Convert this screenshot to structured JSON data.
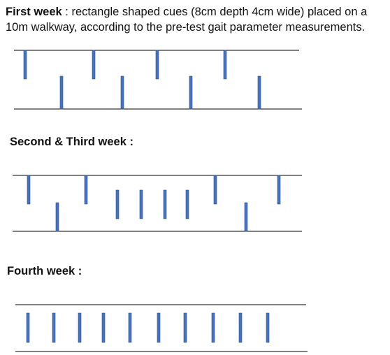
{
  "sections": [
    {
      "title": "First week",
      "description": " : rectangle shaped cues (8cm depth 4cm wide) placed on a 10m walkway, according to the pre-test gait parameter measurements.",
      "cue_pattern": [
        "top",
        "bottom",
        "top",
        "bottom",
        "top",
        "bottom",
        "top",
        "bottom"
      ]
    },
    {
      "title": "Second & Third week :",
      "cue_pattern": [
        "top",
        "bottom",
        "top",
        "middle",
        "middle",
        "middle",
        "middle",
        "top",
        "bottom",
        "top"
      ]
    },
    {
      "title": "Fourth week :",
      "cue_pattern": [
        "middle",
        "middle",
        "middle",
        "middle",
        "middle",
        "middle",
        "middle",
        "middle",
        "middle",
        "middle"
      ]
    }
  ],
  "colors": {
    "cue_fill": "#4472C4",
    "cue_stroke": "#2F528F",
    "walkway_line": "#000000"
  }
}
